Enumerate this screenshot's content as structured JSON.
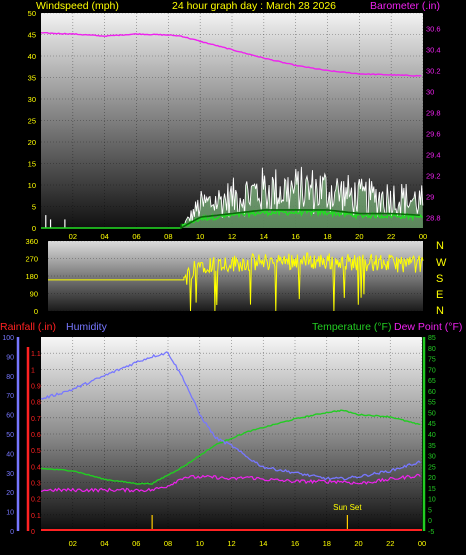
{
  "header": {
    "left_label": "Windspeed (mph)",
    "title": "24 hour graph day : March 28 2026",
    "right_label": "Barometer (.in)"
  },
  "middle_panel": {
    "compass_labels": [
      "N",
      "W",
      "S",
      "E",
      "N"
    ]
  },
  "bottom_header": {
    "rainfall": "Rainfall (.in)",
    "humidity": "Humidity",
    "temperature": "Temperature (°F)",
    "dewpoint": "Dew Point (°F)"
  },
  "colors": {
    "wind_gust": "#ffffff",
    "wind_avg": "#22dd22",
    "barometer": "#ee22ee",
    "direction": "#ffff00",
    "humidity": "#7777ff",
    "temperature": "#22cc22",
    "dewpoint": "#ee22ee",
    "rain": "#ff2222",
    "sun": "#ffcc00"
  },
  "chart_data": [
    {
      "type": "line",
      "name": "wind_barometer",
      "x": [
        0,
        2,
        4,
        6,
        8,
        8.8,
        10,
        12,
        14,
        16,
        18,
        20,
        22,
        24
      ],
      "series": [
        {
          "name": "Windspeed (mph)",
          "axis": "left",
          "values": [
            0,
            0,
            0,
            0,
            0,
            0,
            6,
            8,
            10,
            10,
            10,
            8,
            8,
            7
          ]
        },
        {
          "name": "Barometer (.in)",
          "axis": "right",
          "values": [
            30.56,
            30.55,
            30.53,
            30.55,
            30.54,
            30.53,
            30.48,
            30.4,
            30.32,
            30.25,
            30.2,
            30.17,
            30.16,
            30.15
          ]
        }
      ],
      "left_axis": {
        "ticks": [
          0,
          5,
          10,
          15,
          20,
          25,
          30,
          35,
          40,
          45,
          50
        ],
        "ylim": [
          0,
          50
        ]
      },
      "right_axis": {
        "ticks": [
          "28.8",
          "29",
          "29.2",
          "29.4",
          "29.6",
          "29.8",
          "30",
          "30.2",
          "30.4",
          "30.6"
        ],
        "ylim": [
          28.7,
          30.75
        ]
      },
      "x_ticks": [
        "02",
        "04",
        "06",
        "08",
        "10",
        "12",
        "14",
        "16",
        "18",
        "20",
        "22",
        "00"
      ]
    },
    {
      "type": "line",
      "name": "wind_direction",
      "x": [
        0,
        8.7,
        9.5,
        12,
        16,
        20,
        24
      ],
      "series": [
        {
          "name": "Direction",
          "values": [
            160,
            160,
            240,
            245,
            260,
            250,
            240
          ]
        }
      ],
      "left_axis": {
        "ticks": [
          0,
          90,
          180,
          270,
          360
        ],
        "ylim": [
          0,
          360
        ]
      }
    },
    {
      "type": "line",
      "name": "rain_humidity_temperature",
      "x": [
        0,
        2,
        4,
        6,
        7,
        8,
        9,
        10,
        11,
        12,
        13,
        14,
        16,
        18,
        19,
        20,
        22,
        24
      ],
      "series": [
        {
          "name": "Humidity",
          "axis": "humidity",
          "values": [
            68,
            73,
            80,
            87,
            90,
            92,
            78,
            60,
            48,
            44,
            38,
            33,
            30,
            27,
            27,
            28,
            31,
            36
          ]
        },
        {
          "name": "Temperature (°F)",
          "axis": "temperature",
          "values": [
            24,
            23,
            19,
            17,
            17,
            21,
            25,
            30,
            35,
            38,
            41,
            43,
            47,
            50,
            51,
            49,
            48,
            44
          ]
        },
        {
          "name": "Dew Point (°F)",
          "axis": "temperature",
          "values": [
            14,
            14,
            14,
            14,
            14,
            16,
            20,
            20,
            20,
            19,
            20,
            19,
            18,
            18,
            18,
            17,
            19,
            21
          ]
        },
        {
          "name": "Rainfall (.in)",
          "axis": "rain",
          "values": [
            0,
            0,
            0,
            0,
            0,
            0,
            0,
            0,
            0,
            0,
            0,
            0,
            0,
            0,
            0,
            0,
            0,
            0
          ]
        }
      ],
      "humidity_axis": {
        "ticks": [
          0,
          10,
          20,
          30,
          40,
          50,
          60,
          70,
          80,
          90,
          100
        ],
        "ylim": [
          0,
          100
        ]
      },
      "rain_axis": {
        "ticks": [
          "0",
          "0.1",
          "0.2",
          "0.3",
          "0.4",
          "0.5",
          "0.6",
          "0.7",
          "0.8",
          "0.9",
          "1",
          "1.1"
        ],
        "ylim": [
          0,
          1.2
        ]
      },
      "temperature_axis": {
        "ticks": [
          -5,
          0,
          5,
          10,
          15,
          20,
          25,
          30,
          35,
          40,
          45,
          50,
          55,
          60,
          65,
          70,
          75,
          80,
          85
        ],
        "ylim": [
          -5,
          85
        ]
      },
      "x_ticks": [
        "02",
        "04",
        "06",
        "08",
        "10",
        "12",
        "14",
        "16",
        "18",
        "20",
        "22",
        "00"
      ],
      "annotations": [
        {
          "text": "Sun Set",
          "x": 19.3
        }
      ],
      "sun_markers": [
        7,
        19.3
      ]
    }
  ]
}
